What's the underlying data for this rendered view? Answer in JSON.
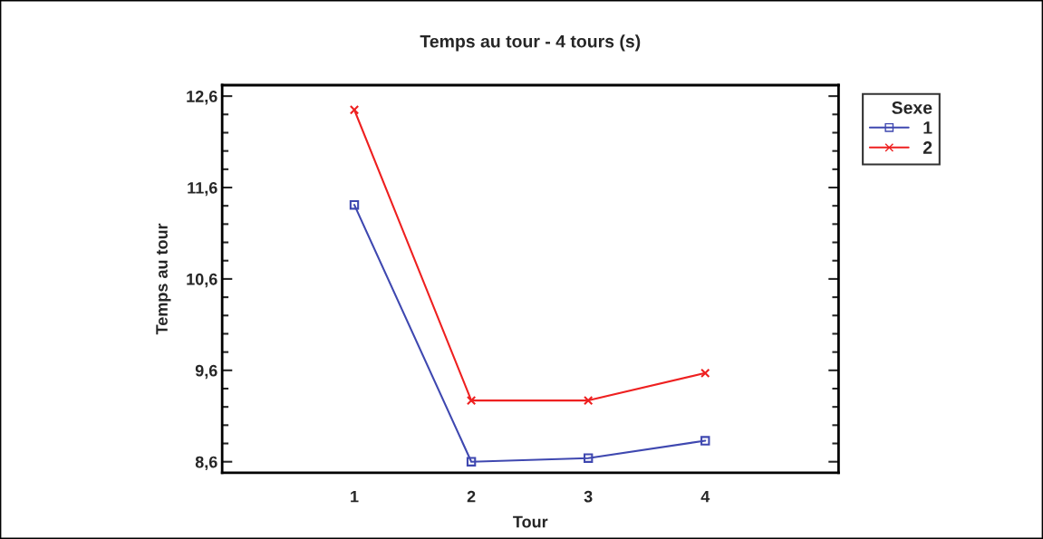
{
  "chart_data": {
    "type": "line",
    "title": "Temps au tour - 4 tours (s)",
    "xlabel": "Tour",
    "ylabel": "Temps au tour",
    "legend_title": "Sexe",
    "categories": [
      "1",
      "2",
      "3",
      "4"
    ],
    "series": [
      {
        "name": "1",
        "color": "#3f48b0",
        "values": [
          11.41,
          8.6,
          8.64,
          8.83
        ],
        "marker": "square"
      },
      {
        "name": "2",
        "color": "#ee2020",
        "values": [
          12.45,
          9.27,
          9.27,
          9.57
        ],
        "marker": "cross"
      }
    ],
    "ylim": [
      8.48,
      12.72
    ],
    "yticks": [
      {
        "value": 8.6,
        "label": "8,6"
      },
      {
        "value": 9.6,
        "label": "9,6"
      },
      {
        "value": 10.6,
        "label": "10,6"
      },
      {
        "value": 11.6,
        "label": "11,6"
      },
      {
        "value": 12.6,
        "label": "12,6"
      }
    ],
    "legend": "top right",
    "grid": false
  }
}
